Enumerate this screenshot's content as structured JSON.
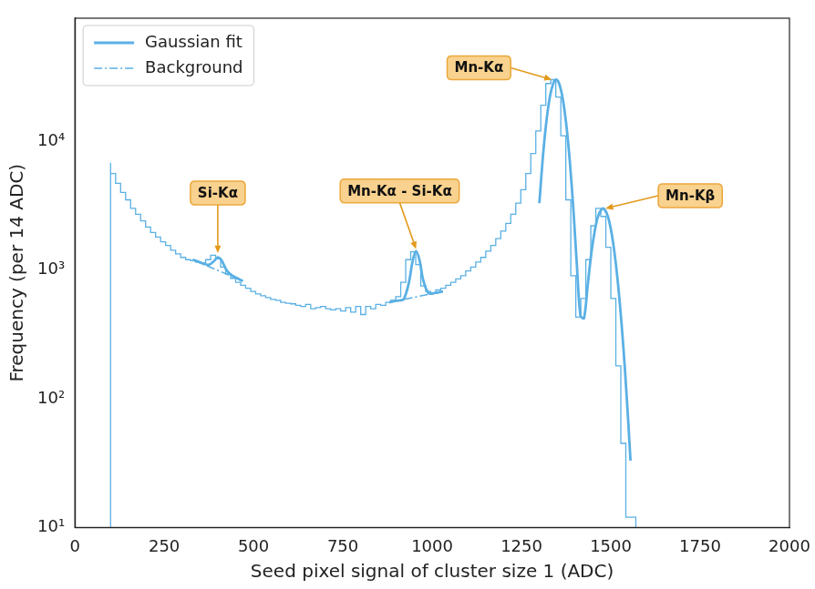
{
  "chart_data": {
    "type": "histogram",
    "x_label": "Seed pixel signal of cluster size 1 (ADC)",
    "y_label": "Frequency (per 14 ADC)",
    "color": "#5ab0e4",
    "bins": [
      100,
      114,
      128,
      142,
      156,
      170,
      184,
      198,
      212,
      226,
      240,
      254,
      268,
      282,
      296,
      310,
      324,
      338,
      352,
      366,
      380,
      394,
      408,
      422,
      436,
      450,
      464,
      478,
      492,
      506,
      520,
      534,
      548,
      562,
      576,
      590,
      604,
      618,
      632,
      646,
      660,
      674,
      688,
      702,
      716,
      730,
      744,
      758,
      772,
      786,
      800,
      814,
      828,
      842,
      856,
      870,
      884,
      898,
      912,
      926,
      940,
      954,
      968,
      982,
      996,
      1010,
      1024,
      1038,
      1052,
      1066,
      1080,
      1094,
      1108,
      1122,
      1136,
      1150,
      1164,
      1178,
      1192,
      1206,
      1220,
      1234,
      1248,
      1262,
      1276,
      1290,
      1304,
      1318,
      1332,
      1346,
      1360,
      1374,
      1388,
      1402,
      1416,
      1430,
      1444,
      1458,
      1472,
      1486,
      1500,
      1514,
      1528,
      1542,
      1556,
      1570
    ],
    "counts": [
      6800,
      5600,
      4700,
      4000,
      3500,
      3000,
      2700,
      2400,
      2150,
      1950,
      1800,
      1650,
      1550,
      1420,
      1330,
      1250,
      1200,
      1180,
      1150,
      1130,
      1200,
      1300,
      1220,
      1050,
      930,
      860,
      800,
      760,
      720,
      680,
      650,
      630,
      610,
      590,
      580,
      560,
      550,
      545,
      530,
      520,
      540,
      500,
      510,
      520,
      500,
      490,
      500,
      480,
      510,
      470,
      520,
      450,
      520,
      500,
      540,
      530,
      560,
      580,
      620,
      800,
      1200,
      1380,
      1100,
      750,
      680,
      660,
      700,
      720,
      760,
      800,
      850,
      900,
      980,
      1050,
      1150,
      1250,
      1400,
      1550,
      1750,
      2000,
      2300,
      2700,
      3300,
      4200,
      5600,
      8000,
      12000,
      19000,
      28000,
      30000,
      22000,
      11000,
      3500,
      900,
      430,
      600,
      1200,
      2200,
      3000,
      2600,
      1500,
      600,
      180,
      45,
      12
    ],
    "series": [
      {
        "name": "Gaussian fit",
        "type": "line",
        "line_style": "solid",
        "color": "#5ab0e4",
        "x": [
          330,
          345,
          360,
          375,
          390,
          400,
          410,
          425,
          440,
          455,
          470,
          700,
          880,
          900,
          920,
          935,
          945,
          955,
          965,
          975,
          990,
          1010,
          1030,
          1200,
          1300,
          1310,
          1320,
          1330,
          1340,
          1347,
          1355,
          1365,
          1375,
          1385,
          1395,
          1405,
          1415,
          1425,
          1435,
          1445,
          1455,
          1465,
          1478,
          1490,
          1500,
          1510,
          1520,
          1530,
          1540,
          1550,
          1555
        ],
        "values": [
          1200,
          1159,
          1119,
          1094,
          1176,
          1252,
          1194,
          989,
          903,
          861,
          820,
          null,
          560,
          576,
          592,
          799,
          1163,
          1400,
          1179,
          831,
          659,
          664,
          680,
          null,
          3300,
          7630,
          14470,
          22470,
          28570,
          30000,
          28140,
          21700,
          13700,
          7084,
          3016,
          1089,
          440,
          421,
          748,
          1312,
          2006,
          2637,
          3000,
          2688,
          2076,
          1377,
          784,
          384,
          161,
          58,
          33
        ]
      },
      {
        "name": "Background",
        "type": "line",
        "line_style": "dashdot",
        "color": "#5ab0e4",
        "x": [
          330,
          470,
          700,
          880,
          1030
        ],
        "values": [
          1200,
          820,
          null,
          560,
          680
        ]
      }
    ],
    "xlim": [
      0,
      2000
    ],
    "xticks": [
      0,
      250,
      500,
      750,
      1000,
      1250,
      1500,
      1750,
      2000
    ],
    "ylim": [
      10,
      90000
    ],
    "yticks": [
      {
        "value": 10,
        "label": "10¹"
      },
      {
        "value": 100,
        "label": "10²"
      },
      {
        "value": 1000,
        "label": "10³"
      },
      {
        "value": 10000,
        "label": "10⁴"
      }
    ],
    "log": "y",
    "grid": false,
    "legend": "upper left",
    "annotations": [
      {
        "text": "Si-Kα",
        "x": 400,
        "y": 1350
      },
      {
        "text": "Mn-Kα - Si-Kα",
        "x": 955,
        "y": 1450
      },
      {
        "text": "Mn-Kα",
        "x": 1335,
        "y": 30000
      },
      {
        "text": "Mn-Kβ",
        "x": 1485,
        "y": 3000
      }
    ]
  }
}
